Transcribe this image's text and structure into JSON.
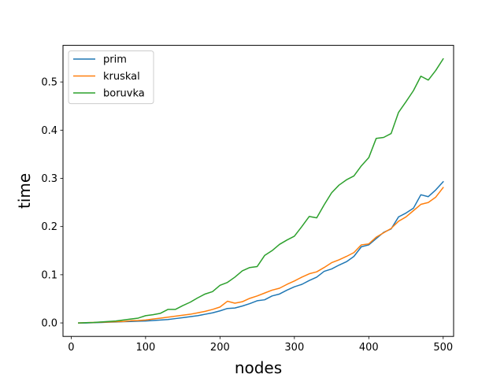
{
  "chart_data": {
    "type": "line",
    "xlabel": "nodes",
    "ylabel": "time",
    "xlim": [
      -11,
      514
    ],
    "ylim": [
      -0.028,
      0.576
    ],
    "xticks": [
      0,
      100,
      200,
      300,
      400,
      500
    ],
    "yticks": [
      0.0,
      0.1,
      0.2,
      0.3,
      0.4,
      0.5
    ],
    "xtick_labels": [
      "0",
      "100",
      "200",
      "300",
      "400",
      "500"
    ],
    "ytick_labels": [
      "0.0",
      "0.1",
      "0.2",
      "0.3",
      "0.4",
      "0.5"
    ],
    "grid": false,
    "legend": "top-left",
    "x": [
      10,
      20,
      30,
      40,
      50,
      60,
      70,
      80,
      90,
      100,
      110,
      120,
      130,
      140,
      150,
      160,
      170,
      180,
      190,
      200,
      210,
      220,
      230,
      240,
      250,
      260,
      270,
      280,
      290,
      300,
      310,
      320,
      330,
      340,
      350,
      360,
      370,
      380,
      390,
      400,
      410,
      420,
      430,
      440,
      450,
      460,
      470,
      480,
      490,
      500
    ],
    "series": [
      {
        "name": "prim",
        "color": "#1f77b4",
        "values": [
          0.0,
          0.0,
          0.0005,
          0.001,
          0.0015,
          0.002,
          0.0025,
          0.003,
          0.0035,
          0.004,
          0.005,
          0.006,
          0.007,
          0.009,
          0.011,
          0.013,
          0.015,
          0.018,
          0.021,
          0.025,
          0.03,
          0.031,
          0.035,
          0.04,
          0.046,
          0.048,
          0.056,
          0.06,
          0.068,
          0.075,
          0.08,
          0.088,
          0.095,
          0.107,
          0.112,
          0.12,
          0.127,
          0.138,
          0.158,
          0.162,
          0.175,
          0.188,
          0.195,
          0.22,
          0.228,
          0.238,
          0.266,
          0.262,
          0.276,
          0.293
        ]
      },
      {
        "name": "kruskal",
        "color": "#ff7f0e",
        "values": [
          0.0,
          0.0005,
          0.001,
          0.0015,
          0.002,
          0.0025,
          0.003,
          0.0045,
          0.005,
          0.006,
          0.008,
          0.01,
          0.012,
          0.014,
          0.016,
          0.018,
          0.021,
          0.024,
          0.028,
          0.033,
          0.045,
          0.041,
          0.044,
          0.051,
          0.056,
          0.062,
          0.068,
          0.072,
          0.08,
          0.087,
          0.095,
          0.102,
          0.106,
          0.115,
          0.125,
          0.131,
          0.138,
          0.146,
          0.162,
          0.164,
          0.178,
          0.187,
          0.196,
          0.211,
          0.22,
          0.233,
          0.246,
          0.25,
          0.261,
          0.281
        ]
      },
      {
        "name": "boruvka",
        "color": "#2ca02c",
        "values": [
          0.0,
          0.0005,
          0.001,
          0.002,
          0.003,
          0.004,
          0.006,
          0.008,
          0.01,
          0.015,
          0.017,
          0.02,
          0.028,
          0.028,
          0.036,
          0.043,
          0.052,
          0.06,
          0.065,
          0.078,
          0.084,
          0.095,
          0.108,
          0.115,
          0.117,
          0.14,
          0.15,
          0.163,
          0.172,
          0.18,
          0.2,
          0.221,
          0.218,
          0.245,
          0.27,
          0.286,
          0.297,
          0.305,
          0.326,
          0.343,
          0.383,
          0.385,
          0.393,
          0.437,
          0.459,
          0.482,
          0.512,
          0.504,
          0.524,
          0.548
        ]
      }
    ]
  }
}
